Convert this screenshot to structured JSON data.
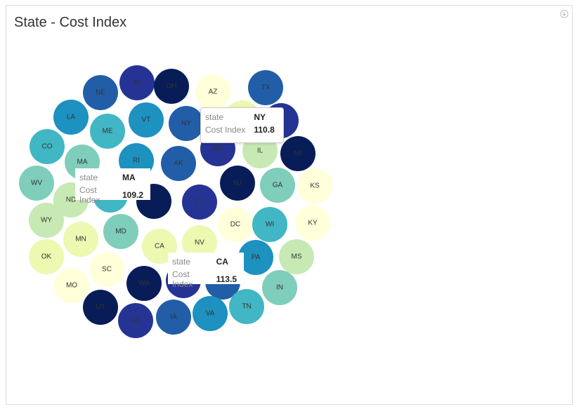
{
  "panel": {
    "title": "State - Cost Index"
  },
  "colors": {
    "scale": [
      "#ffffd9",
      "#edf8b1",
      "#c7e9b4",
      "#7fcdbb",
      "#41b6c4",
      "#1d91c0",
      "#225ea8",
      "#253494",
      "#081d58"
    ]
  },
  "tooltip_labels": {
    "key1": "state",
    "key2": "Cost Index"
  },
  "tooltips": [
    {
      "state": "NY",
      "value": "110.8"
    },
    {
      "state": "MA",
      "value": "109.2"
    },
    {
      "state": "CA",
      "value": "113.5"
    }
  ],
  "chart_data": {
    "type": "bubble",
    "title": "State - Cost Index",
    "color_field": "Cost Index",
    "points": [
      {
        "label": "AL",
        "level": 7
      },
      {
        "label": "OH",
        "level": 8
      },
      {
        "label": "AZ",
        "level": 0
      },
      {
        "label": "TX",
        "level": 6
      },
      {
        "label": "NE",
        "level": 6
      },
      {
        "label": "LA",
        "level": 5
      },
      {
        "label": "VT",
        "level": 5
      },
      {
        "label": "NY",
        "level": 6
      },
      {
        "label": "ME",
        "level": 4
      },
      {
        "label": "CO",
        "level": 4
      },
      {
        "label": "RI",
        "level": 5
      },
      {
        "label": "MA",
        "level": 3
      },
      {
        "label": "AK",
        "level": 6
      },
      {
        "label": "NH",
        "level": 7
      },
      {
        "label": "IL",
        "level": 2
      },
      {
        "label": "MI",
        "level": 8
      },
      {
        "label": "WV",
        "level": 3
      },
      {
        "label": "ND",
        "level": 2
      },
      {
        "label": "NJ",
        "level": 8
      },
      {
        "label": "GA",
        "level": 3
      },
      {
        "label": "KS",
        "level": 0
      },
      {
        "label": "CT",
        "level": 7
      },
      {
        "label": "WY",
        "level": 2
      },
      {
        "label": "DC",
        "level": 0
      },
      {
        "label": "WI",
        "level": 4
      },
      {
        "label": "KY",
        "level": 0
      },
      {
        "label": "MN",
        "level": 1
      },
      {
        "label": "MD",
        "level": 3
      },
      {
        "label": "CA",
        "level": 1
      },
      {
        "label": "NV",
        "level": 1
      },
      {
        "label": "OK",
        "level": 1
      },
      {
        "label": "SC",
        "level": 0
      },
      {
        "label": "PA",
        "level": 5
      },
      {
        "label": "MS",
        "level": 2
      },
      {
        "label": "MO",
        "level": 0
      },
      {
        "label": "WA",
        "level": 8
      },
      {
        "label": "IN",
        "level": 3
      },
      {
        "label": "UT",
        "level": 8
      },
      {
        "label": "AR",
        "level": 7
      },
      {
        "label": "IA",
        "level": 6
      },
      {
        "label": "VA",
        "level": 5
      },
      {
        "label": "TN",
        "level": 4
      },
      {
        "label": "",
        "level": 8
      },
      {
        "label": "",
        "level": 4
      },
      {
        "label": "",
        "level": 7
      },
      {
        "label": "",
        "level": 6
      },
      {
        "label": "",
        "level": 1
      },
      {
        "label": "",
        "level": 7
      }
    ],
    "tooltip_values": [
      {
        "state": "NY",
        "Cost Index": 110.8
      },
      {
        "state": "MA",
        "Cost Index": 109.2
      },
      {
        "state": "CA",
        "Cost Index": 113.5
      }
    ]
  }
}
